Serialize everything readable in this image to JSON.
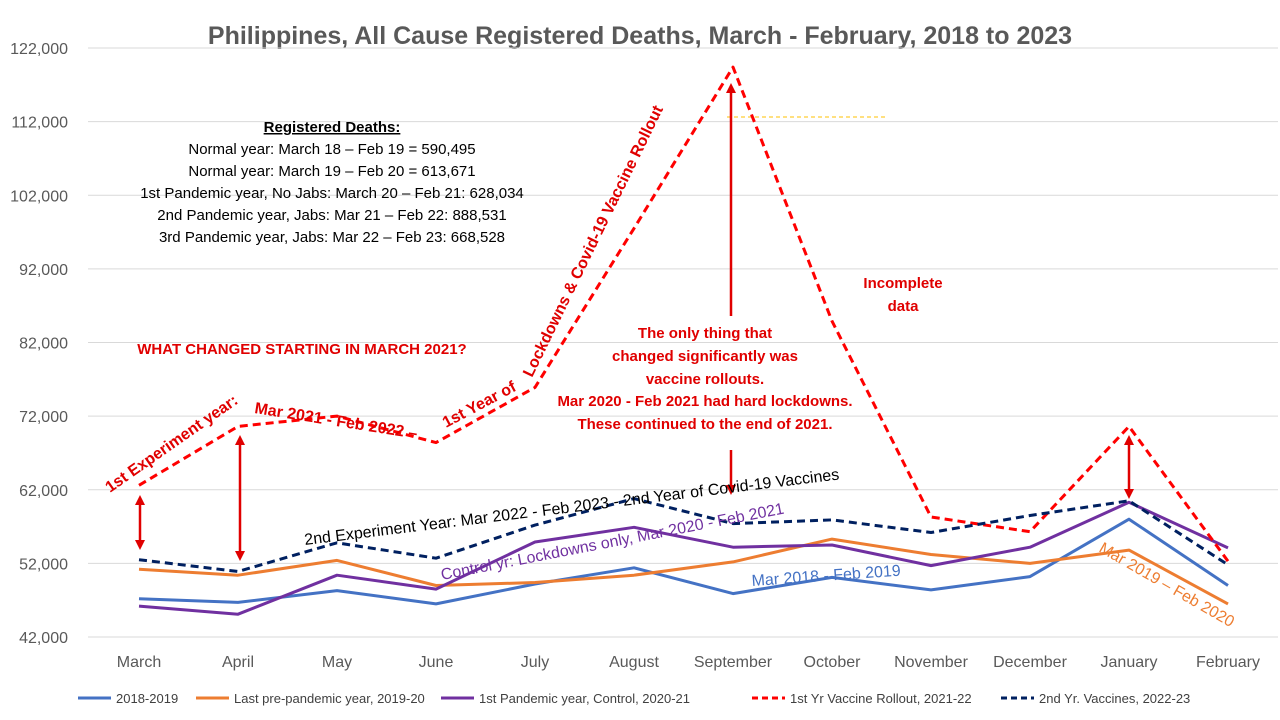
{
  "chart_data": {
    "type": "line",
    "title": "Philippines, All Cause Registered Deaths, March - February, 2018 to 2023",
    "categories": [
      "March",
      "April",
      "May",
      "June",
      "July",
      "August",
      "September",
      "October",
      "November",
      "December",
      "January",
      "February"
    ],
    "y_ticks": [
      "42,000",
      "52,000",
      "62,000",
      "72,000",
      "82,000",
      "92,000",
      "102,000",
      "112,000",
      "122,000"
    ],
    "ylim": [
      42000,
      122000
    ],
    "grid": true,
    "legend_position": "bottom",
    "series": [
      {
        "name": "2018-2019",
        "color": "#4472c4",
        "style": "solid",
        "values": [
          47200,
          46700,
          48300,
          46500,
          49200,
          51400,
          47900,
          50100,
          48400,
          50200,
          58000,
          49000
        ]
      },
      {
        "name": "Last pre-pandemic year, 2019-20",
        "color": "#ed7d31",
        "style": "solid",
        "values": [
          51200,
          50400,
          52400,
          49000,
          49400,
          50400,
          52200,
          55300,
          53200,
          52000,
          53800,
          46500
        ]
      },
      {
        "name": "1st Pandemic year, Control, 2020-21",
        "color": "#7030a0",
        "style": "solid",
        "values": [
          46200,
          45100,
          50400,
          48500,
          54900,
          56900,
          54200,
          54500,
          51700,
          54200,
          60300,
          54100
        ]
      },
      {
        "name": "1st Yr Vaccine Rollout, 2021-22",
        "color": "#ff0000",
        "style": "dashed",
        "values": [
          62600,
          70600,
          72000,
          68400,
          75900,
          97500,
          119400,
          84900,
          58300,
          56300,
          70600,
          52300
        ]
      },
      {
        "name": "2nd Yr. Vaccines, 2022-23",
        "color": "#002060",
        "style": "dashed",
        "values": [
          52500,
          50900,
          54800,
          52700,
          57200,
          60800,
          57400,
          57900,
          56200,
          58500,
          60500,
          51800
        ]
      }
    ],
    "annotations": {
      "box_heading": "Registered Deaths:",
      "box_lines": [
        "Normal year: March 18 – Feb 19 = 590,495",
        "Normal year: March 19 – Feb 20 = 613,671",
        "1st Pandemic year, No Jabs: March 20 – Feb 21: 628,034",
        "2nd Pandemic year, Jabs: Mar 21 – Feb 22: 888,531",
        "3rd Pandemic year, Jabs: Mar 22 – Feb 23: 668,528"
      ],
      "what_changed": "WHAT CHANGED STARTING IN MARCH 2021?",
      "incomplete": [
        "Incomplete",
        "data"
      ],
      "center_note": [
        "The only thing that",
        "changed significantly was",
        "vaccine rollouts.",
        "Mar 2020 - Feb 2021 had hard lockdowns.",
        "These continued to the end of 2021."
      ],
      "label_red_1": "1st Experiment year:",
      "label_red_2": "Mar 2021 - Feb 2022 –",
      "label_red_3": "1st Year of",
      "label_red_4": "Lockdowns & Covid-19 Vaccine Rollout",
      "label_navy": "2nd Experiment Year: Mar 2022 - Feb 2023 - 2nd Year of Covid-19 Vaccines",
      "label_purple": "Control yr: Lockdowns only, Mar 2020 - Feb 2021",
      "label_blue": "Mar 2018 - Feb 2019",
      "label_orange": "Mar 2019 – Feb 2020"
    }
  }
}
